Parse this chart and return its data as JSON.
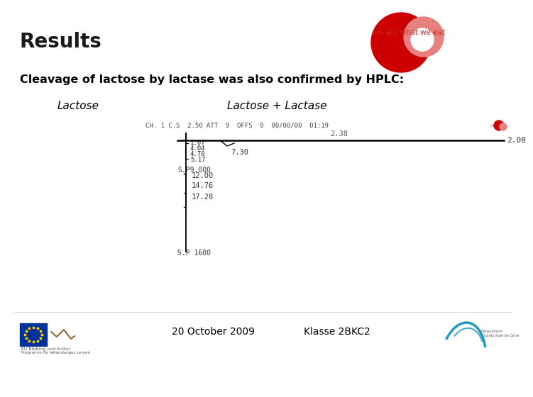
{
  "title": "Results",
  "subtitle": "Cleavage of lactose by lactase was also confirmed by HPLC:",
  "label_left": "Lactose",
  "label_right": "Lactose + Lactase",
  "header_text": "CH. 1 C.S  2.50 ATT  9  OFFS  0  00/00/00  01:19",
  "right_label": "2.08",
  "mid_label": "2.38",
  "peak_labels": [
    "1.07",
    "4.04",
    "4.70",
    "5.17"
  ],
  "label_730": "7.30",
  "label_sp": "S.P9.000",
  "label_1200": "12.00",
  "label_1476": "14.76",
  "label_1728": "17.28",
  "label_sp2": "S.P 1600",
  "footer_date": "20 October 2009",
  "footer_class": "Klasse 2BKC2",
  "bg_color": "#ffffff",
  "text_color": "#000000",
  "title_color": "#1a1a1a",
  "subtitle_color": "#000000",
  "logo_red_main": "#cc0000",
  "logo_red_small": "#cc2222",
  "logo_pink": "#e88080"
}
